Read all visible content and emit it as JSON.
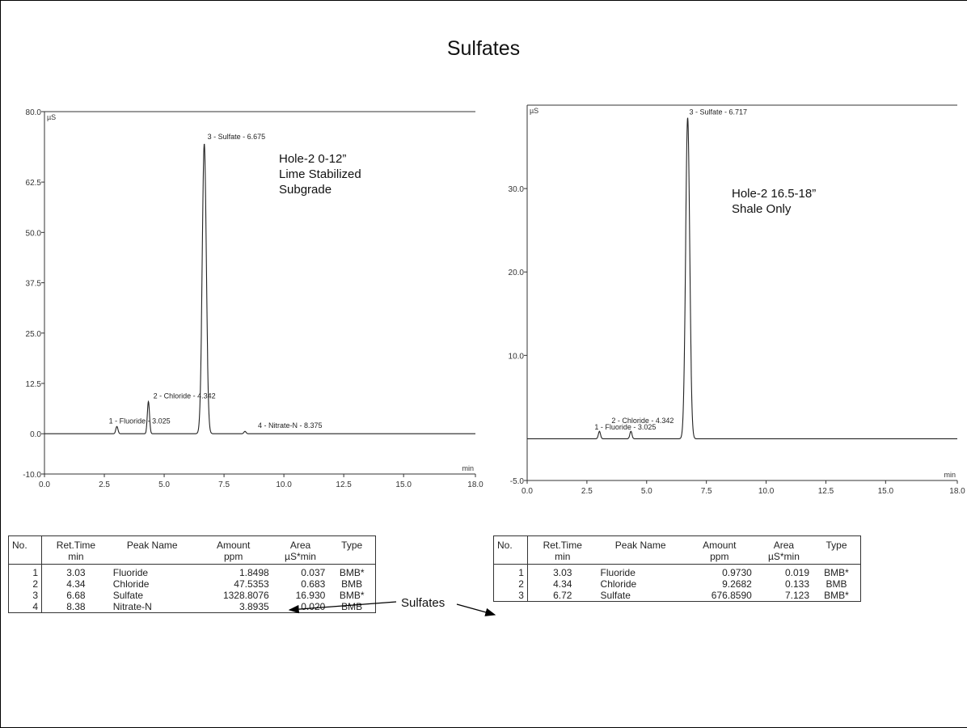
{
  "title": "Sulfates",
  "chart_data": [
    {
      "type": "line",
      "name": "left-chromatogram",
      "y_unit": "µS",
      "x_unit": "min",
      "xlim": [
        0,
        18
      ],
      "ylim": [
        -10,
        80
      ],
      "x_ticks": [
        "0.0",
        "2.5",
        "5.0",
        "7.5",
        "10.0",
        "12.5",
        "15.0",
        "18.0"
      ],
      "y_ticks": [
        "80.0",
        "62.5",
        "50.0",
        "37.5",
        "25.0",
        "12.5",
        "0.0",
        "-10.0"
      ],
      "annotation": [
        "Hole-2  0-12”",
        "Lime Stabilized",
        "Subgrade"
      ],
      "peaks": [
        {
          "label": "1 - Fluoride - 3.025",
          "x": 3.025,
          "y": 1.8
        },
        {
          "label": "2 - Chloride - 4.342",
          "x": 4.342,
          "y": 8.0
        },
        {
          "label": "3 - Sulfate - 6.675",
          "x": 6.675,
          "y": 72.0
        },
        {
          "label": "4 - Nitrate-N - 8.375",
          "x": 8.375,
          "y": 0.6
        }
      ],
      "baseline": 0
    },
    {
      "type": "line",
      "name": "right-chromatogram",
      "y_unit": "µS",
      "x_unit": "min",
      "xlim": [
        0,
        18
      ],
      "ylim": [
        -5,
        40
      ],
      "x_ticks": [
        "0.0",
        "2.5",
        "5.0",
        "7.5",
        "10.0",
        "12.5",
        "15.0",
        "18.0"
      ],
      "y_ticks": [
        "30.0",
        "20.0",
        "10.0",
        "-5.0"
      ],
      "annotation": [
        "Hole-2  16.5-18”",
        "Shale Only"
      ],
      "peaks": [
        {
          "label": "1 - Fluoride - 3.025",
          "x": 3.025,
          "y": 0.9
        },
        {
          "label": "2 - Chloride - 4.342",
          "x": 4.342,
          "y": 0.9
        },
        {
          "label": "3 - Sulfate - 6.717",
          "x": 6.717,
          "y": 38.5
        }
      ],
      "baseline": 0
    }
  ],
  "tables": [
    {
      "headers": [
        [
          "No.",
          ""
        ],
        [
          "Ret.Time",
          "min"
        ],
        [
          "Peak Name",
          ""
        ],
        [
          "Amount",
          "ppm"
        ],
        [
          "Area",
          "µS*min"
        ],
        [
          "Type",
          ""
        ]
      ],
      "rows": [
        [
          "1",
          "3.03",
          "Fluoride",
          "1.8498",
          "0.037",
          "BMB*"
        ],
        [
          "2",
          "4.34",
          "Chloride",
          "47.5353",
          "0.683",
          "BMB"
        ],
        [
          "3",
          "6.68",
          "Sulfate",
          "1328.8076",
          "16.930",
          "BMB*"
        ],
        [
          "4",
          "8.38",
          "Nitrate-N",
          "3.8935",
          "0.020",
          "BMB"
        ]
      ]
    },
    {
      "headers": [
        [
          "No.",
          ""
        ],
        [
          "Ret.Time",
          "min"
        ],
        [
          "Peak Name",
          ""
        ],
        [
          "Amount",
          "ppm"
        ],
        [
          "Area",
          "µS*min"
        ],
        [
          "Type",
          ""
        ]
      ],
      "rows": [
        [
          "1",
          "3.03",
          "Fluoride",
          "0.9730",
          "0.019",
          "BMB*"
        ],
        [
          "2",
          "4.34",
          "Chloride",
          "9.2682",
          "0.133",
          "BMB"
        ],
        [
          "3",
          "6.72",
          "Sulfate",
          "676.8590",
          "7.123",
          "BMB*"
        ]
      ]
    }
  ],
  "callout": "Sulfates"
}
